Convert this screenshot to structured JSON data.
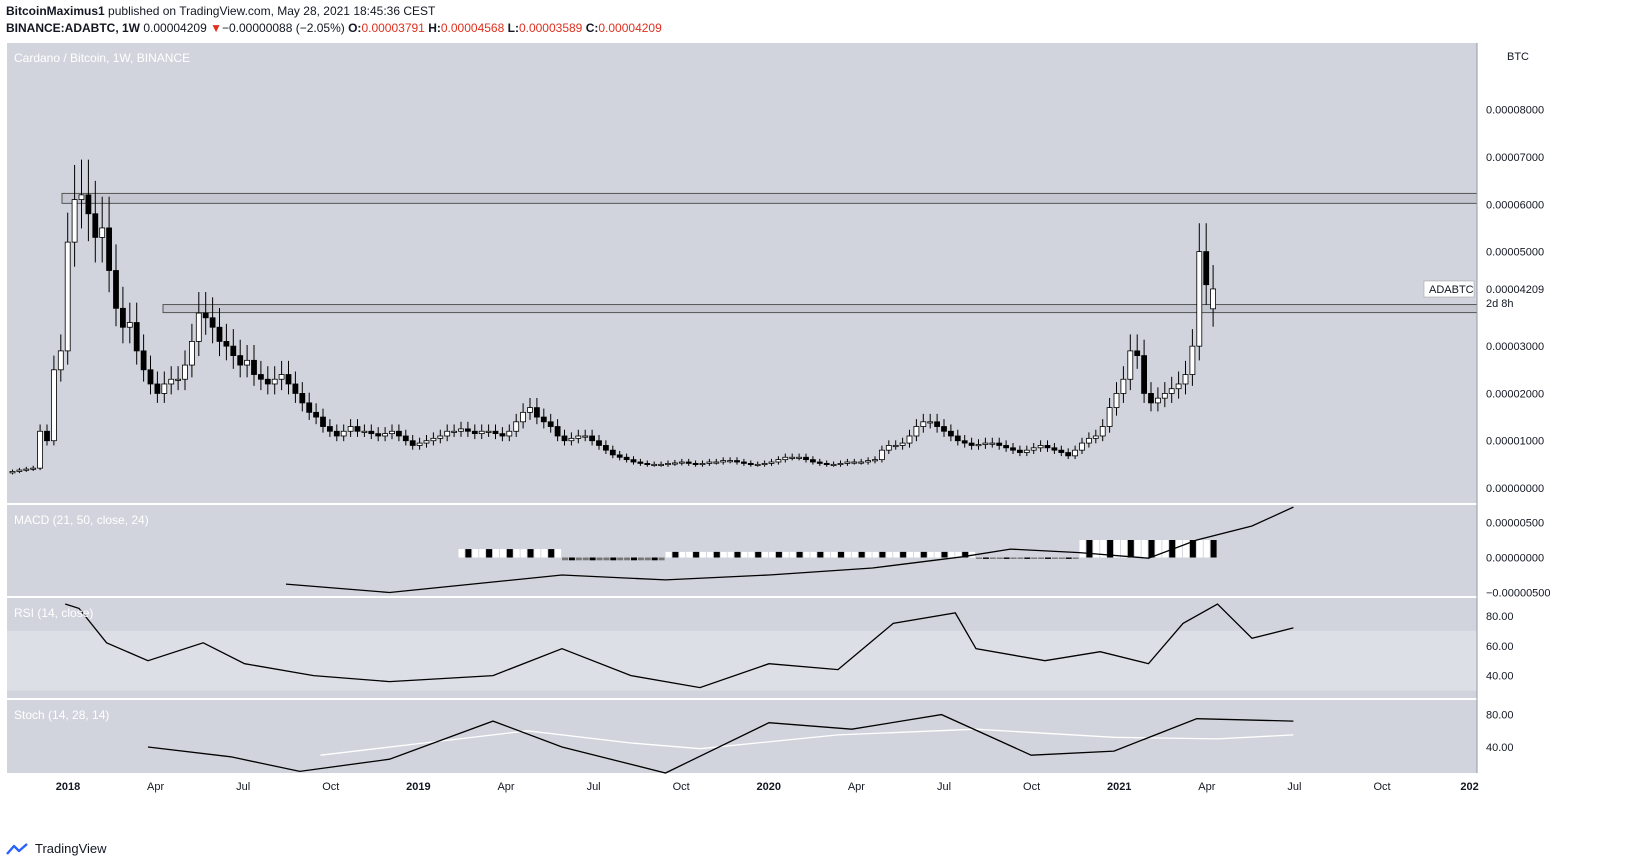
{
  "header": {
    "author": "BitcoinMaximus1",
    "published": "published on TradingView.com, May 28, 2021 18:45:36 CEST",
    "symbol": "BINANCE:ADABTC, 1W",
    "last": "0.00004209",
    "arrow": "▼",
    "change": "−0.00000088 (−2.05%)",
    "o_label": "O:",
    "o": "0.00003791",
    "h_label": "H:",
    "h": "0.00004568",
    "l_label": "L:",
    "l": "0.00003589",
    "c_label": "C:",
    "c": "0.00004209"
  },
  "footer": {
    "brand": "TradingView",
    "logo_icon": "tradingview-logo-icon"
  },
  "colors": {
    "pane_bg": "#d1d4dc",
    "rsi_band": "#dcdfe5",
    "bull": "#ffffff",
    "bear": "#000000",
    "price_change": "#e0301e"
  },
  "chart_data": [
    {
      "type": "candlestick",
      "title": "Cardano / Bitcoin, 1W, BINANCE",
      "currency_label": "BTC",
      "price_label": "ADABTC",
      "price_value": "0.00004209",
      "countdown": "2d 8h",
      "x_ticks": [
        "2018",
        "Apr",
        "Jul",
        "Oct",
        "2019",
        "Apr",
        "Jul",
        "Oct",
        "2020",
        "Apr",
        "Jul",
        "Oct",
        "2021",
        "Apr",
        "Jul",
        "Oct",
        "202"
      ],
      "y_ticks": [
        "0.00000000",
        "0.00001000",
        "0.00002000",
        "0.00003000",
        "0.00004000",
        "0.00005000",
        "0.00006000",
        "0.00007000",
        "0.00008000"
      ],
      "ylim": [
        0,
        9.2e-05
      ],
      "resistance_zones": [
        [
          6.02e-05,
          6.23e-05
        ],
        [
          3.71e-05,
          3.88e-05
        ]
      ],
      "close_series": [
        3.5e-06,
        3.8e-06,
        4e-06,
        4.2e-06,
        1.2e-05,
        1e-05,
        2.5e-05,
        2.9e-05,
        5.2e-05,
        6.1e-05,
        6.2e-05,
        5.8e-05,
        5.3e-05,
        5.5e-05,
        4.6e-05,
        3.8e-05,
        3.4e-05,
        3.5e-05,
        2.9e-05,
        2.5e-05,
        2.2e-05,
        2e-05,
        2.2e-05,
        2.3e-05,
        2.3e-05,
        2.6e-05,
        3.1e-05,
        3.7e-05,
        3.6e-05,
        3.4e-05,
        3.1e-05,
        3e-05,
        2.8e-05,
        2.6e-05,
        2.7e-05,
        2.4e-05,
        2.3e-05,
        2.2e-05,
        2.3e-05,
        2.4e-05,
        2.2e-05,
        2e-05,
        1.8e-05,
        1.6e-05,
        1.5e-05,
        1.3e-05,
        1.2e-05,
        1.1e-05,
        1.2e-05,
        1.3e-05,
        1.2e-05,
        1.2e-05,
        1.15e-05,
        1.1e-05,
        1.15e-05,
        1.2e-05,
        1.1e-05,
        1e-05,
        9e-06,
        9.5e-06,
        1e-05,
        1.05e-05,
        1.1e-05,
        1.2e-05,
        1.2e-05,
        1.25e-05,
        1.2e-05,
        1.15e-05,
        1.2e-05,
        1.2e-05,
        1.15e-05,
        1.1e-05,
        1.2e-05,
        1.4e-05,
        1.6e-05,
        1.7e-05,
        1.5e-05,
        1.4e-05,
        1.3e-05,
        1.1e-05,
        1e-05,
        1.05e-05,
        1.1e-05,
        1.1e-05,
        1e-05,
        9e-06,
        8e-06,
        7e-06,
        6.5e-06,
        6e-06,
        5.5e-06,
        5.2e-06,
        5e-06,
        5e-06,
        5e-06,
        5.2e-06,
        5.3e-06,
        5.5e-06,
        5.2e-06,
        5e-06,
        5.2e-06,
        5.5e-06,
        5.5e-06,
        5.8e-06,
        5.8e-06,
        5.5e-06,
        5.2e-06,
        5e-06,
        5e-06,
        5.2e-06,
        5.5e-06,
        6e-06,
        6.5e-06,
        6.5e-06,
        6.5e-06,
        6e-06,
        5.5e-06,
        5.2e-06,
        5e-06,
        5e-06,
        5.2e-06,
        5.5e-06,
        5.5e-06,
        5.5e-06,
        5.8e-06,
        6e-06,
        8e-06,
        9e-06,
        9e-06,
        9.5e-06,
        1.1e-05,
        1.3e-05,
        1.4e-05,
        1.4e-05,
        1.3e-05,
        1.2e-05,
        1.1e-05,
        1e-05,
        9.5e-06,
        9e-06,
        9.2e-06,
        9.5e-06,
        9.5e-06,
        9e-06,
        8.5e-06,
        8e-06,
        7.5e-06,
        8e-06,
        8.5e-06,
        9e-06,
        8.5e-06,
        8e-06,
        7.5e-06,
        6.8e-06,
        8e-06,
        9.5e-06,
        1.05e-05,
        1.1e-05,
        1.3e-05,
        1.7e-05,
        2e-05,
        2.3e-05,
        2.9e-05,
        2.8e-05,
        2e-05,
        1.8e-05,
        1.9e-05,
        2e-05,
        2.1e-05,
        2.2e-05,
        2.4e-05,
        3e-05,
        5e-05,
        4.3e-05,
        4.21e-05
      ],
      "open_series": [
        3.2e-06,
        3.5e-06,
        3.8e-06,
        4e-06,
        4.2e-06,
        1.2e-05,
        1e-05,
        2.5e-05,
        2.9e-05,
        5.2e-05,
        6.1e-05,
        6.2e-05,
        5.8e-05,
        5.3e-05,
        5.5e-05,
        4.6e-05,
        3.8e-05,
        3.4e-05,
        3.5e-05,
        2.9e-05,
        2.5e-05,
        2.2e-05,
        2e-05,
        2.2e-05,
        2.3e-05,
        2.3e-05,
        2.6e-05,
        3.1e-05,
        3.7e-05,
        3.6e-05,
        3.4e-05,
        3.1e-05,
        3e-05,
        2.8e-05,
        2.6e-05,
        2.7e-05,
        2.4e-05,
        2.3e-05,
        2.2e-05,
        2.3e-05,
        2.4e-05,
        2.2e-05,
        2e-05,
        1.8e-05,
        1.6e-05,
        1.5e-05,
        1.3e-05,
        1.2e-05,
        1.1e-05,
        1.2e-05,
        1.3e-05,
        1.2e-05,
        1.2e-05,
        1.15e-05,
        1.1e-05,
        1.15e-05,
        1.2e-05,
        1.1e-05,
        1e-05,
        9e-06,
        9.5e-06,
        1e-05,
        1.05e-05,
        1.1e-05,
        1.2e-05,
        1.2e-05,
        1.25e-05,
        1.2e-05,
        1.15e-05,
        1.2e-05,
        1.2e-05,
        1.15e-05,
        1.1e-05,
        1.2e-05,
        1.4e-05,
        1.6e-05,
        1.7e-05,
        1.5e-05,
        1.4e-05,
        1.3e-05,
        1.1e-05,
        1e-05,
        1.05e-05,
        1.1e-05,
        1.1e-05,
        1e-05,
        9e-06,
        8e-06,
        7e-06,
        6.5e-06,
        6e-06,
        5.5e-06,
        5.2e-06,
        5e-06,
        5e-06,
        5e-06,
        5.2e-06,
        5.3e-06,
        5.5e-06,
        5.2e-06,
        5e-06,
        5.2e-06,
        5.5e-06,
        5.5e-06,
        5.8e-06,
        5.8e-06,
        5.5e-06,
        5.2e-06,
        5e-06,
        5e-06,
        5.2e-06,
        5.5e-06,
        6e-06,
        6.5e-06,
        6.5e-06,
        6.5e-06,
        6e-06,
        5.5e-06,
        5.2e-06,
        5e-06,
        5e-06,
        5.2e-06,
        5.5e-06,
        5.5e-06,
        5.5e-06,
        5.8e-06,
        6e-06,
        8e-06,
        9e-06,
        9e-06,
        9.5e-06,
        1.1e-05,
        1.3e-05,
        1.4e-05,
        1.4e-05,
        1.3e-05,
        1.2e-05,
        1.1e-05,
        1e-05,
        9.5e-06,
        9e-06,
        9.2e-06,
        9.5e-06,
        9.5e-06,
        9e-06,
        8.5e-06,
        8e-06,
        7.5e-06,
        8e-06,
        8.5e-06,
        9e-06,
        8.5e-06,
        8e-06,
        7.5e-06,
        6.8e-06,
        8e-06,
        9.5e-06,
        1.05e-05,
        1.1e-05,
        1.3e-05,
        1.7e-05,
        2e-05,
        2.3e-05,
        2.9e-05,
        2.8e-05,
        2e-05,
        1.8e-05,
        1.9e-05,
        2e-05,
        2.1e-05,
        2.2e-05,
        2.4e-05,
        3e-05,
        5e-05,
        3.79e-05
      ]
    },
    {
      "type": "line",
      "title": "MACD (21, 50, close, 24)",
      "y_ticks": [
        "0.00000500",
        "0.00000000",
        "−0.00000500"
      ],
      "ylim": [
        -5.5e-06,
        7.5e-06
      ],
      "macd_points": [
        [
          40,
          -3.8e-06
        ],
        [
          55,
          -5e-06
        ],
        [
          70,
          -3.5e-06
        ],
        [
          80,
          -2.5e-06
        ],
        [
          95,
          -3.2e-06
        ],
        [
          110,
          -2.5e-06
        ],
        [
          125,
          -1.5e-06
        ],
        [
          138,
          1e-07
        ],
        [
          145,
          1.2e-06
        ],
        [
          155,
          7e-07
        ],
        [
          165,
          -1e-07
        ],
        [
          172,
          2.5e-06
        ],
        [
          180,
          4.5e-06
        ],
        [
          186,
          7.2e-06
        ]
      ]
    },
    {
      "type": "line",
      "title": "RSI (14, close)",
      "y_ticks": [
        "80.00",
        "60.00",
        "40.00"
      ],
      "ylim": [
        25,
        92
      ],
      "band": [
        30,
        70
      ],
      "rsi_points": [
        [
          8,
          88
        ],
        [
          10,
          85
        ],
        [
          14,
          62
        ],
        [
          20,
          50
        ],
        [
          28,
          62
        ],
        [
          34,
          48
        ],
        [
          44,
          40
        ],
        [
          55,
          36
        ],
        [
          70,
          40
        ],
        [
          80,
          58
        ],
        [
          90,
          40
        ],
        [
          100,
          32
        ],
        [
          110,
          48
        ],
        [
          120,
          44
        ],
        [
          128,
          75
        ],
        [
          137,
          82
        ],
        [
          140,
          58
        ],
        [
          150,
          50
        ],
        [
          158,
          56
        ],
        [
          165,
          48
        ],
        [
          170,
          75
        ],
        [
          175,
          88
        ],
        [
          180,
          65
        ],
        [
          186,
          72
        ]
      ]
    },
    {
      "type": "line",
      "title": "Stoch (14, 28, 14)",
      "y_ticks": [
        "80.00",
        "40.00"
      ],
      "ylim": [
        8,
        98
      ],
      "stoch_k": [
        [
          20,
          40
        ],
        [
          32,
          28
        ],
        [
          42,
          10
        ],
        [
          55,
          25
        ],
        [
          70,
          72
        ],
        [
          80,
          40
        ],
        [
          95,
          8
        ],
        [
          110,
          70
        ],
        [
          122,
          62
        ],
        [
          135,
          80
        ],
        [
          148,
          30
        ],
        [
          160,
          35
        ],
        [
          172,
          75
        ],
        [
          186,
          72
        ]
      ],
      "stoch_d": [
        [
          45,
          30
        ],
        [
          60,
          45
        ],
        [
          75,
          60
        ],
        [
          90,
          45
        ],
        [
          100,
          38
        ],
        [
          120,
          55
        ],
        [
          140,
          62
        ],
        [
          160,
          52
        ],
        [
          175,
          50
        ],
        [
          186,
          55
        ]
      ]
    }
  ]
}
